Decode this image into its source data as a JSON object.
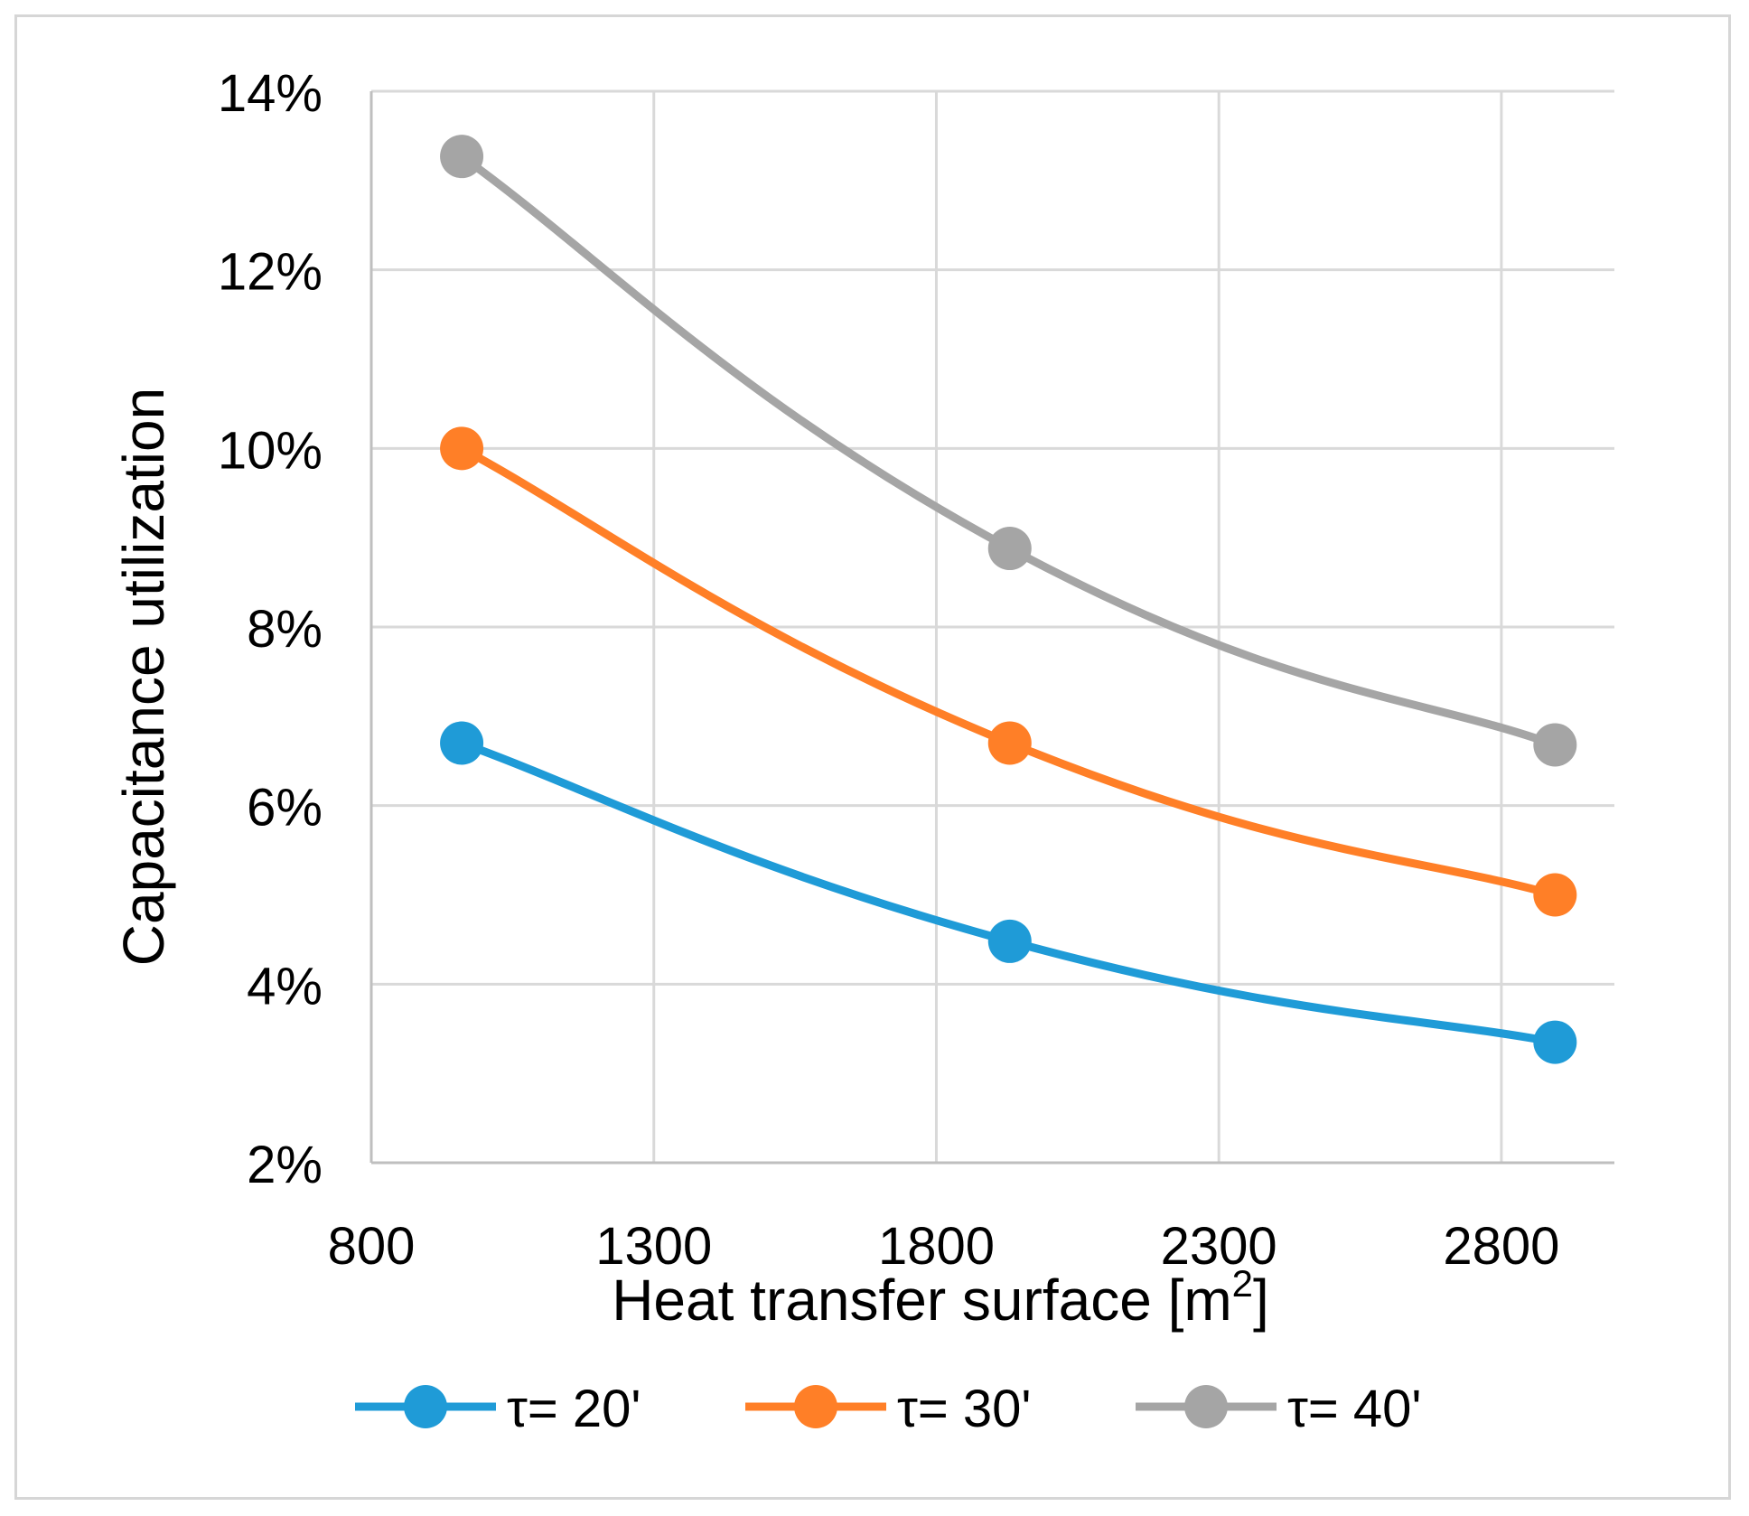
{
  "chart_data": {
    "type": "line",
    "title": "",
    "xlabel": "Heat transfer surface [m",
    "xlabel_superscript": "2",
    "xlabel_suffix": "]",
    "ylabel": "Capacitance utilization",
    "xlim": [
      800,
      3000
    ],
    "ylim": [
      0.02,
      0.14
    ],
    "x_ticks": [
      800,
      1300,
      1800,
      2300,
      2800
    ],
    "x_tick_labels": [
      "800",
      "1300",
      "1800",
      "2300",
      "2800"
    ],
    "y_ticks": [
      0.02,
      0.04,
      0.06,
      0.08,
      0.1,
      0.12,
      0.14
    ],
    "y_tick_labels": [
      "2%",
      "4%",
      "6%",
      "8%",
      "10%",
      "12%",
      "14%"
    ],
    "grid": true,
    "smooth": true,
    "legend_position": "bottom",
    "series": [
      {
        "name": "τ= 20'",
        "color": "#1f9bd7",
        "x": [
          960,
          1930,
          2895
        ],
        "y": [
          0.067,
          0.0448,
          0.0335
        ]
      },
      {
        "name": "τ= 30'",
        "color": "#ff7f27",
        "x": [
          960,
          1930,
          2895
        ],
        "y": [
          0.1,
          0.067,
          0.05
        ]
      },
      {
        "name": "τ= 40'",
        "color": "#a5a5a5",
        "x": [
          960,
          1930,
          2895
        ],
        "y": [
          0.1327,
          0.0888,
          0.0668
        ]
      }
    ]
  }
}
